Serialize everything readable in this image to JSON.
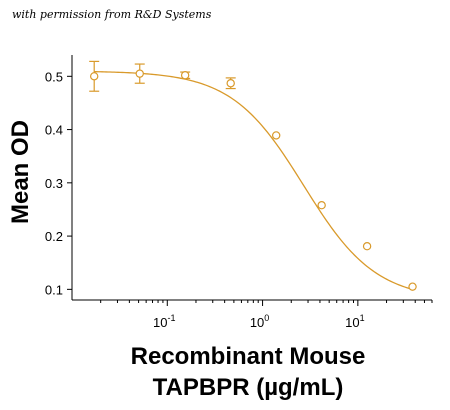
{
  "note": "with permission from R&D Systems",
  "chart_data": {
    "type": "scatter",
    "title": "",
    "ylabel": "Mean OD",
    "xlabel_line1": "Recombinant Mouse",
    "xlabel_line2": "TAPBPR (µg/mL)",
    "x_scale": "log",
    "xlim": [
      0.01,
      60
    ],
    "ylim": [
      0.08,
      0.54
    ],
    "yticks": [
      0.1,
      0.2,
      0.3,
      0.4,
      0.5
    ],
    "ytick_labels": [
      "0.1",
      "0.2",
      "0.3",
      "0.4",
      "0.5"
    ],
    "xticks_major": [
      0.1,
      1,
      10
    ],
    "xtick_labels": [
      {
        "base": "10",
        "exp": "-1"
      },
      {
        "base": "10",
        "exp": "0"
      },
      {
        "base": "10",
        "exp": "1"
      }
    ],
    "color": "#D99A2B",
    "series": [
      {
        "x": [
          0.0171,
          0.0514,
          0.154,
          0.463,
          1.39,
          4.17,
          12.5,
          37.5
        ],
        "y": [
          0.5,
          0.505,
          0.502,
          0.487,
          0.389,
          0.258,
          0.181,
          0.105
        ],
        "err": [
          0.028,
          0.018,
          0.006,
          0.01,
          0,
          0,
          0,
          0
        ]
      }
    ],
    "fit": {
      "top": 0.51,
      "bottom": 0.08,
      "ec50": 2.7,
      "hill": 1.15
    }
  }
}
